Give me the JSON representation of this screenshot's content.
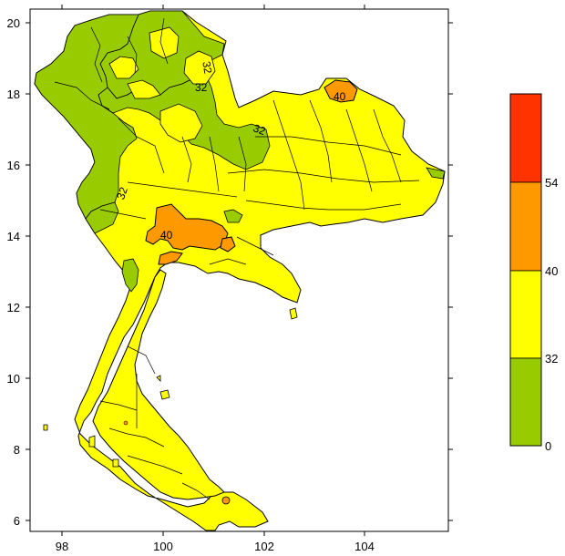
{
  "map": {
    "x_axis": {
      "ticks": [
        "98",
        "100",
        "102",
        "104"
      ]
    },
    "y_axis": {
      "ticks": [
        "20",
        "18",
        "16",
        "14",
        "12",
        "10",
        "8",
        "6"
      ]
    },
    "contour_labels": [
      "32",
      "32",
      "32",
      "40",
      "32",
      "40"
    ]
  },
  "legend": {
    "bins": [
      {
        "range": "0-32",
        "color": "#99cc00"
      },
      {
        "range": "32-40",
        "color": "#ffff00"
      },
      {
        "range": "40-54",
        "color": "#ff9900"
      },
      {
        "range": "54+",
        "color": "#ff3300"
      }
    ],
    "labels": [
      "54",
      "40",
      "32",
      "0"
    ]
  },
  "colors": {
    "low": "#99cc00",
    "mid": "#ffff00",
    "high": "#ff9900",
    "max": "#ff3300",
    "outline": "#000000"
  }
}
